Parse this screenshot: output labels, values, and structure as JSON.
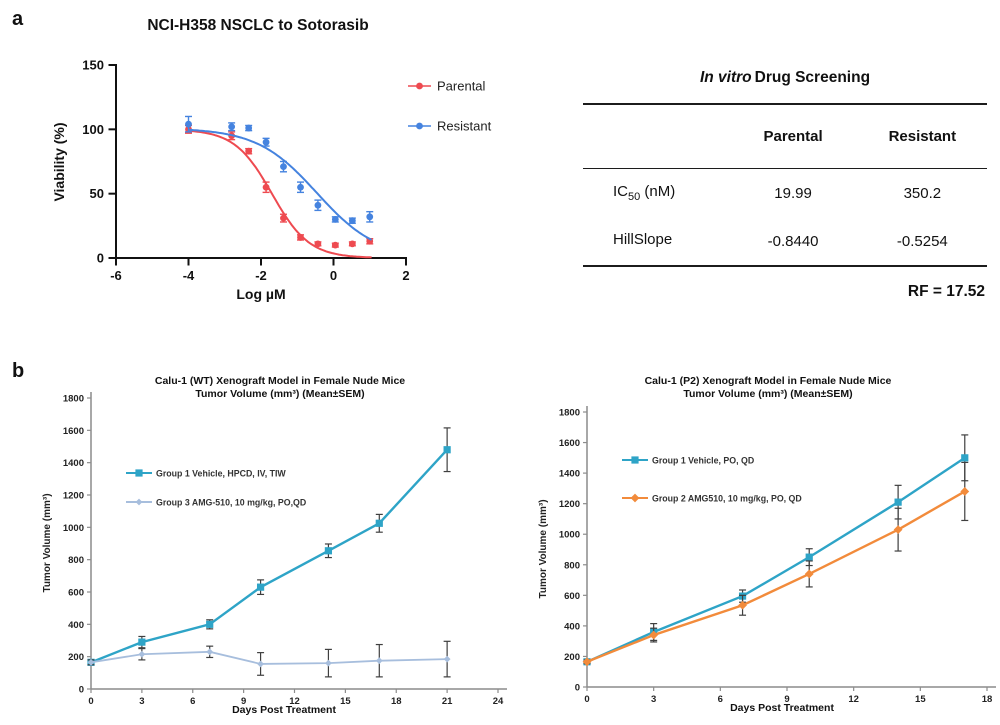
{
  "panel_a": {
    "label": "a",
    "table": {
      "title_italic": "In vitro",
      "title_rest": "Drug Screening",
      "columns": [
        "Parental",
        "Resistant"
      ],
      "rows": [
        {
          "label_pre": "IC",
          "label_sub": "50",
          "label_post": " (nM)",
          "values": [
            "19.99",
            "350.2"
          ]
        },
        {
          "label_pre": "HillSlope",
          "label_sub": "",
          "label_post": "",
          "values": [
            "-0.8440",
            "-0.5254"
          ]
        }
      ],
      "footnote": "RF = 17.52",
      "footnote_color": "#a81a1a"
    }
  },
  "panel_b": {
    "label": "b"
  },
  "colors": {
    "parental_red": "#ee4a50",
    "resistant_blue": "#4583df",
    "teal": "#2ea4c7",
    "light_blue": "#a7bedd",
    "orange": "#f28b3b",
    "error_bar_dark": "#3f3f3f",
    "axis_gray": "#8c8c8c",
    "axis_black": "#111111"
  },
  "chart_data": [
    {
      "id": "dose-response",
      "type": "scatter",
      "title": "NCI-H358 NSCLC to Sotorasib",
      "xlabel": "Log µM",
      "ylabel": "Viability (%)",
      "xlim": [
        -6,
        2
      ],
      "ylim": [
        0,
        150
      ],
      "xticks": [
        -6,
        -4,
        -2,
        0,
        2
      ],
      "yticks": [
        0,
        50,
        100,
        150
      ],
      "grid": false,
      "legend_position": "right-top",
      "x": [
        -4,
        -2.81,
        -2.34,
        -1.86,
        -1.38,
        -0.91,
        -0.43,
        0.05,
        0.52,
        1.0
      ],
      "series": [
        {
          "name": "Parental",
          "color": "#ee4a50",
          "marker": "circle",
          "values": [
            100,
            95,
            83,
            55,
            31,
            16,
            11,
            10,
            11,
            13
          ],
          "errors": [
            3,
            3,
            2,
            4,
            3,
            2,
            1.5,
            1.5,
            1.5,
            2
          ],
          "fit": {
            "top": 100,
            "bottom": 0,
            "logIC50": -1.699,
            "hillslope": -0.844
          }
        },
        {
          "name": "Resistant",
          "color": "#4583df",
          "marker": "circle",
          "values": [
            104,
            102,
            101,
            90,
            71,
            55,
            41,
            30,
            29,
            32
          ],
          "errors": [
            6,
            3,
            2,
            3,
            4,
            4,
            4,
            2,
            2,
            4
          ],
          "fit": {
            "top": 101,
            "bottom": 0,
            "logIC50": -0.4557,
            "hillslope": -0.5254
          }
        }
      ]
    },
    {
      "id": "xenograft-wt",
      "type": "line",
      "title_line1": "Calu-1 (WT) Xenograft Model in Female Nude Mice",
      "title_line2": "Tumor Volume (mm³) (Mean±SEM)",
      "xlabel": "Days Post Treatment",
      "ylabel": "Tumor Volume (mm³)",
      "xlim": [
        0,
        24
      ],
      "ylim": [
        0,
        1800
      ],
      "xticks": [
        0,
        3,
        6,
        9,
        12,
        15,
        18,
        21,
        24
      ],
      "yticks": [
        0,
        200,
        400,
        600,
        800,
        1000,
        1200,
        1400,
        1600,
        1800
      ],
      "grid": false,
      "legend_position": "inside-left-top",
      "x": [
        0,
        3,
        7,
        10,
        14,
        17,
        21
      ],
      "series": [
        {
          "name": "Group 1 Vehicle, HPCD, IV, TIW",
          "color": "#2ea4c7",
          "marker": "square",
          "msize": 3.6,
          "lw": 2.4,
          "values": [
            165,
            290,
            400,
            630,
            855,
            1025,
            1480
          ],
          "errors": [
            15,
            35,
            28,
            45,
            42,
            55,
            135
          ]
        },
        {
          "name": "Group 3 AMG-510, 10 mg/kg, PO,QD",
          "color": "#a7bedd",
          "marker": "diamond",
          "msize": 2.4,
          "lw": 1.8,
          "values": [
            165,
            215,
            230,
            155,
            160,
            175,
            185
          ],
          "errors": [
            15,
            35,
            35,
            70,
            85,
            100,
            110
          ]
        }
      ]
    },
    {
      "id": "xenograft-p2",
      "type": "line",
      "title_line1": "Calu-1 (P2) Xenograft Model in Female Nude Mice",
      "title_line2": "Tumor Volume (mm³) (Mean±SEM)",
      "xlabel": "Days Post Treatment",
      "ylabel": "Tumor Volume (mm³)",
      "xlim": [
        0,
        18
      ],
      "ylim": [
        0,
        1800
      ],
      "xticks": [
        0,
        3,
        6,
        9,
        12,
        15,
        18
      ],
      "yticks": [
        0,
        200,
        400,
        600,
        800,
        1000,
        1200,
        1400,
        1600,
        1800
      ],
      "grid": false,
      "legend_position": "inside-left-top",
      "x": [
        0,
        3,
        7,
        10,
        14,
        17
      ],
      "series": [
        {
          "name": "Group 1 Vehicle, PO, QD",
          "color": "#2ea4c7",
          "marker": "square",
          "msize": 3.6,
          "lw": 2.4,
          "values": [
            165,
            360,
            595,
            850,
            1210,
            1500
          ],
          "errors": [
            12,
            55,
            40,
            55,
            110,
            150
          ]
        },
        {
          "name": "Group 2 AMG510, 10 mg/kg, PO, QD",
          "color": "#f28b3b",
          "marker": "diamond",
          "msize": 3.4,
          "lw": 2.4,
          "values": [
            165,
            340,
            535,
            740,
            1030,
            1280
          ],
          "errors": [
            12,
            45,
            65,
            85,
            140,
            190
          ]
        }
      ]
    }
  ]
}
